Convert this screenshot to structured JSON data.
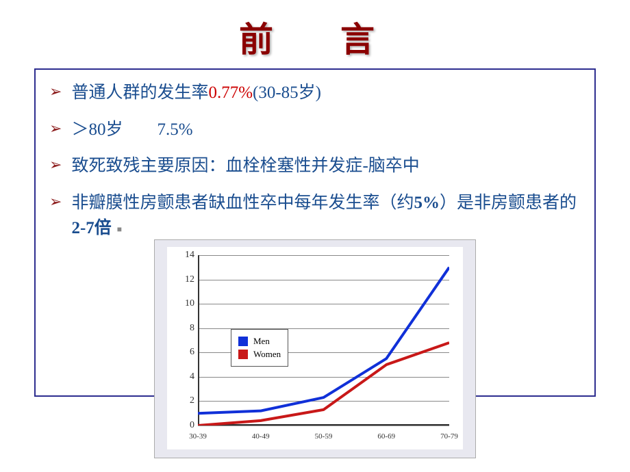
{
  "title": "前　言",
  "bullets": [
    {
      "parts": [
        {
          "text": "普通人群的发生率",
          "cls": ""
        },
        {
          "text": "0.77%",
          "cls": "highlight-red"
        },
        {
          "text": "(30-85岁)",
          "cls": ""
        }
      ]
    },
    {
      "parts": [
        {
          "text": "＞80岁　　7.5%",
          "cls": ""
        }
      ]
    },
    {
      "parts": [
        {
          "text": "致死致残主要原因：血栓栓塞性并发症-脑卒中",
          "cls": ""
        }
      ]
    },
    {
      "parts": [
        {
          "text": "非瓣膜性房颤患者缺血性卒中每年发生率（约",
          "cls": ""
        },
        {
          "text": "5%",
          "cls": "bold"
        },
        {
          "text": "）是非房颤患者的",
          "cls": ""
        },
        {
          "text": "2-7倍",
          "cls": "bold"
        }
      ],
      "dot": true
    }
  ],
  "chart": {
    "type": "line",
    "categories": [
      "30-39",
      "40-49",
      "50-59",
      "60-69",
      "70-79"
    ],
    "series": [
      {
        "name": "Men",
        "color": "#1030d8",
        "values": [
          1.0,
          1.2,
          2.3,
          5.5,
          13.0
        ],
        "width": 4
      },
      {
        "name": "Women",
        "color": "#c81818",
        "values": [
          0.0,
          0.4,
          1.3,
          5.0,
          6.8
        ],
        "width": 4
      }
    ],
    "ylim": [
      0,
      14
    ],
    "ytick_step": 2,
    "background_color": "#ffffff",
    "panel_color": "#e8e8f0",
    "grid_color": "#888888",
    "axis_color": "#333333",
    "label_fontsize": 14,
    "x_label_fontsize": 11
  },
  "colors": {
    "title_color": "#8B0000",
    "bullet_marker": "#8B1A1A",
    "text_color": "#1a4d8f",
    "highlight": "#cc0000",
    "box_border": "#2d2d8f"
  }
}
